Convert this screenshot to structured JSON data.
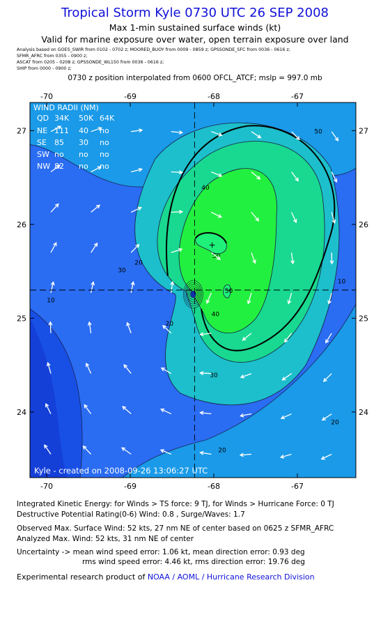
{
  "header": {
    "title": "Tropical Storm Kyle 0730 UTC 26 SEP 2008",
    "subtitle": "Max 1-min sustained surface winds (kt)",
    "validity": "Valid for marine exposure over water, open terrain exposure over land",
    "sources": [
      "Analysis based on  GOES_SWIR from 0102 - 0702 z;   MOORED_BUOY from 0009 - 0859 z;   GPSSONDE_SFC from 0036 - 0616 z;",
      "SFMR_AFRC from 0355 - 0900 z;",
      "ASCAT from 0205 - 0208 z;   GPSSONDE_WL150 from 0036 - 0616 z;",
      "SHIP from 0000 - 0900 z;"
    ],
    "position_note": "0730 z position interpolated from 0600 OFCL_ATCF; mslp = 997.0 mb"
  },
  "chart_data": {
    "type": "heatmap",
    "xlim": [
      -70.2,
      -66.3
    ],
    "ylim": [
      23.3,
      27.3
    ],
    "x_ticks": [
      "-70",
      "-69",
      "-68",
      "-67"
    ],
    "y_ticks": [
      "24",
      "25",
      "26",
      "27"
    ],
    "center": [
      -68.23,
      25.3
    ],
    "contour_levels": [
      10,
      20,
      30,
      40,
      50
    ],
    "contour_labels": [
      {
        "text": "50",
        "x": -66.75,
        "y": 27.0
      },
      {
        "text": "40",
        "x": -68.1,
        "y": 26.4
      },
      {
        "text": "50",
        "x": -67.97,
        "y": 25.67
      },
      {
        "text": "20",
        "x": -68.9,
        "y": 25.6
      },
      {
        "text": "30",
        "x": -69.1,
        "y": 25.52
      },
      {
        "text": "40",
        "x": -67.98,
        "y": 25.05
      },
      {
        "text": "50",
        "x": -67.82,
        "y": 25.3
      },
      {
        "text": "10",
        "x": -69.95,
        "y": 25.2
      },
      {
        "text": "20",
        "x": -68.53,
        "y": 24.95
      },
      {
        "text": "30",
        "x": -68.0,
        "y": 24.4
      },
      {
        "text": "20",
        "x": -66.55,
        "y": 23.9
      },
      {
        "text": "20",
        "x": -67.9,
        "y": 23.6
      },
      {
        "text": "10",
        "x": -66.47,
        "y": 25.4
      }
    ],
    "wind_radii": {
      "title": "WIND RADII (NM)",
      "header": [
        "QD",
        "34K",
        "50K",
        "64K"
      ],
      "rows": [
        [
          "NE",
          "111",
          "40",
          "no"
        ],
        [
          "SE",
          "85",
          "30",
          "no"
        ],
        [
          "SW",
          "no",
          "no",
          "no"
        ],
        [
          "NW",
          "82",
          "no",
          "no"
        ]
      ]
    },
    "credit": "Kyle - created on 2008-09-26 13:06:27 UTC"
  },
  "colors": {
    "title": "#1010d8",
    "fill_scale": [
      "#1850e6",
      "#2a6cf2",
      "#1a9ae8",
      "#1cbfcb",
      "#18d98f",
      "#22f040"
    ]
  },
  "footer": {
    "ike": "Integrated Kinetic Energy:  for Winds > TS force: 9 TJ,  for Winds > Hurricane Force: 0 TJ",
    "dpr": "Destructive Potential Rating(0-6)   Wind: 0.8 , Surge/Waves: 1.7",
    "observed": "Observed Max. Surface Wind: 52 kts, 27 nm NE of center based on 0625 z SFMR_AFRC",
    "analyzed": "Analyzed Max. Wind: 52 kts, 31 nm NE of center",
    "uncertainty1": "Uncertainty -> mean wind speed error: 1.06 kt,   mean direction error: 0.93 deg",
    "uncertainty2": "rms wind speed error: 4.46 kt,   rms direction error: 19.76 deg",
    "credit_prefix": "Experimental research product of ",
    "credit_org": "NOAA / AOML / Hurricane Research Division"
  }
}
